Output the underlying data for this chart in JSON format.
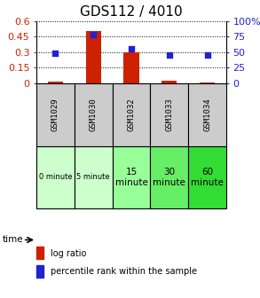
{
  "title": "GDS112 / 4010",
  "samples": [
    "GSM1029",
    "GSM1030",
    "GSM1032",
    "GSM1033",
    "GSM1034"
  ],
  "log_ratio": [
    0.02,
    0.5,
    0.3,
    0.03,
    0.01
  ],
  "percentile_rank": [
    48,
    78,
    55,
    45,
    45
  ],
  "left_ylim": [
    0,
    0.6
  ],
  "right_ylim": [
    0,
    100
  ],
  "left_yticks": [
    0,
    0.15,
    0.3,
    0.45,
    0.6
  ],
  "left_yticklabels": [
    "0",
    "0.15",
    "0.3",
    "0.45",
    "0.6"
  ],
  "right_yticks": [
    0,
    25,
    50,
    75,
    100
  ],
  "right_yticklabels": [
    "0",
    "25",
    "50",
    "75",
    "100%"
  ],
  "time_labels": [
    "0 minute",
    "5 minute",
    "15\nminute",
    "30\nminute",
    "60\nminute"
  ],
  "time_colors": [
    "#ccffcc",
    "#ccffcc",
    "#99ff99",
    "#66ee66",
    "#33dd33"
  ],
  "sample_bg_color": "#cccccc",
  "bar_color": "#cc2200",
  "dot_color": "#2222cc",
  "title_fontsize": 11,
  "tick_fontsize": 8,
  "legend_fontsize": 7,
  "bar_width": 0.4
}
